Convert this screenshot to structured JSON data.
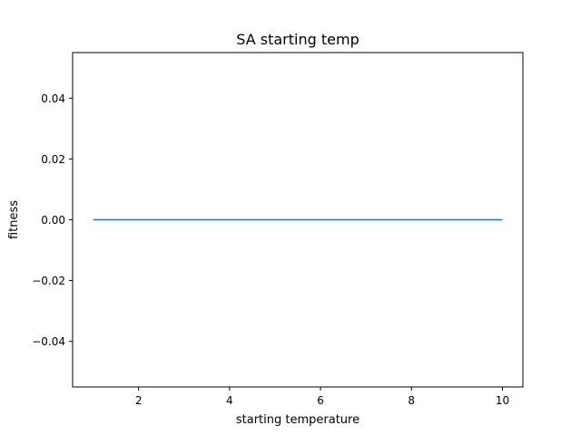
{
  "chart_data": {
    "type": "line",
    "title": "SA starting temp",
    "xlabel": "starting temperature",
    "ylabel": "fitness",
    "xlim": [
      0.55,
      10.45
    ],
    "ylim": [
      -0.055,
      0.055
    ],
    "xticks": [
      2,
      4,
      6,
      8,
      10
    ],
    "xtick_labels": [
      "2",
      "4",
      "6",
      "8",
      "10"
    ],
    "yticks": [
      -0.04,
      -0.02,
      0.0,
      0.02,
      0.04
    ],
    "ytick_labels": [
      "−0.04",
      "−0.02",
      "0.00",
      "0.02",
      "0.04"
    ],
    "grid": false,
    "series": [
      {
        "color": "#1f77b4",
        "x": [
          1,
          2,
          3,
          4,
          5,
          6,
          7,
          8,
          9,
          10
        ],
        "y": [
          0,
          0,
          0,
          0,
          0,
          0,
          0,
          0,
          0,
          0
        ]
      }
    ]
  }
}
